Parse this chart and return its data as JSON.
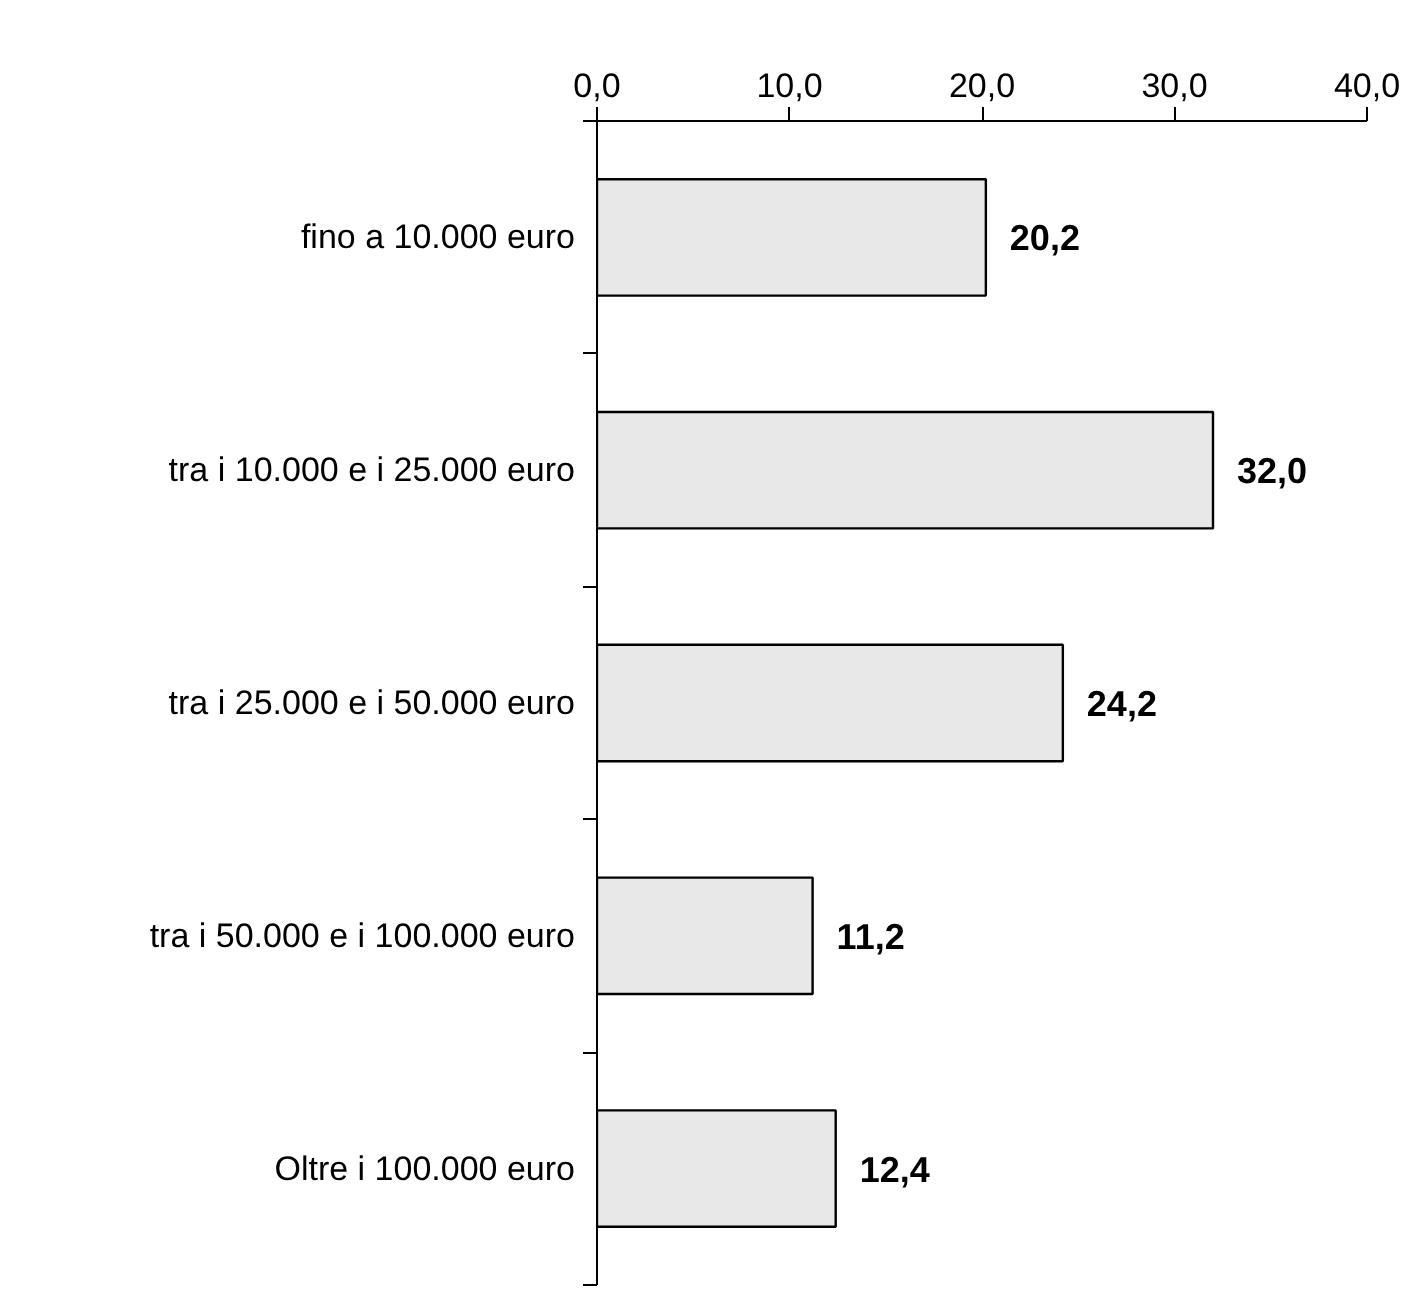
{
  "chart_data": {
    "type": "bar",
    "orientation": "horizontal",
    "categories": [
      "fino a 10.000 euro",
      "tra i 10.000 e i 25.000 euro",
      "tra i 25.000 e i 50.000 euro",
      "tra i 50.000 e i 100.000 euro",
      "Oltre i 100.000 euro"
    ],
    "values": [
      20.2,
      32.0,
      24.2,
      11.2,
      12.4
    ],
    "value_labels": [
      "20,2",
      "32,0",
      "24,2",
      "11,2",
      "12,4"
    ],
    "color": "#e8e8e8",
    "xlim": [
      0,
      40
    ],
    "xticks": [
      {
        "value": 0,
        "label": "0,0"
      },
      {
        "value": 10,
        "label": "10,0"
      },
      {
        "value": 20,
        "label": "20,0"
      },
      {
        "value": 30,
        "label": "30,0"
      },
      {
        "value": 40,
        "label": "40,0"
      }
    ],
    "grid": false
  }
}
